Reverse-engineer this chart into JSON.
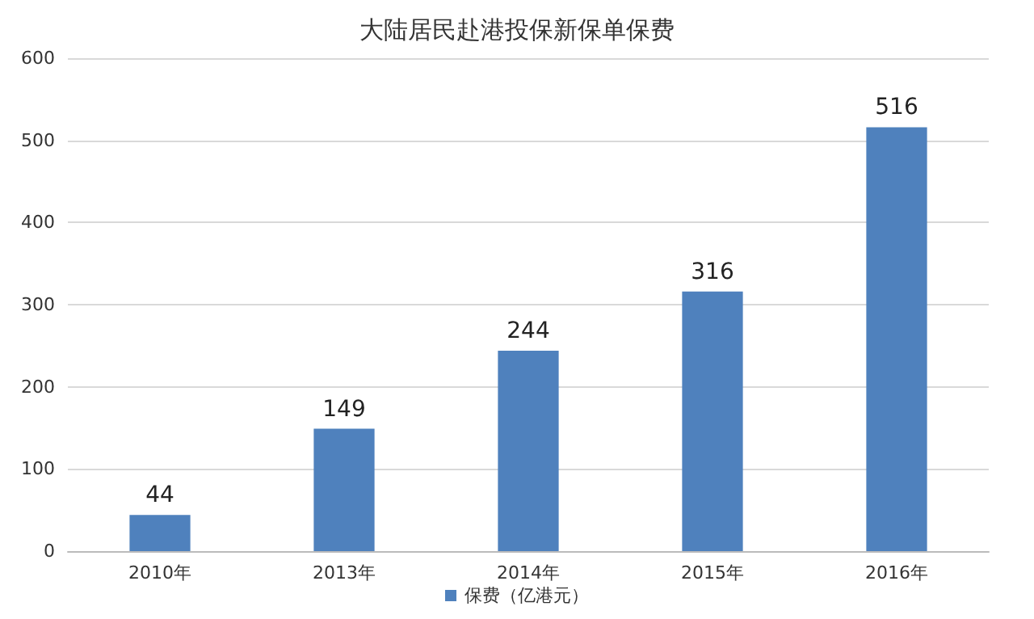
{
  "chart_data": {
    "type": "bar",
    "title": "大陆居民赴港投保新保单保费",
    "categories": [
      "2010年",
      "2013年",
      "2014年",
      "2015年",
      "2016年"
    ],
    "series": [
      {
        "name": "保费（亿港元）",
        "color": "#4f81bd",
        "values": [
          44,
          149,
          244,
          316,
          516
        ]
      }
    ],
    "ylim": [
      0,
      600
    ],
    "yticks": [
      0,
      100,
      200,
      300,
      400,
      500,
      600
    ],
    "grid": "y",
    "legend": "bottom",
    "data_labels": true
  }
}
